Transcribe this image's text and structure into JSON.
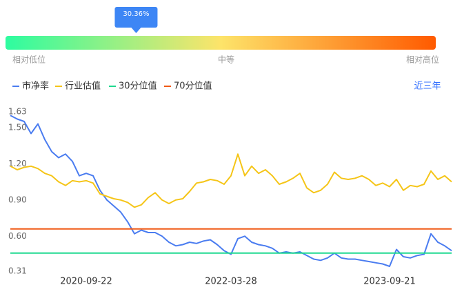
{
  "gauge": {
    "value": 30.36,
    "label": "30.36%",
    "low": "相对低位",
    "mid": "中等",
    "high": "相对高位"
  },
  "range_button": "近三年",
  "chart_data": {
    "type": "line",
    "categories": [
      null,
      null,
      null,
      null,
      null,
      null,
      null,
      null,
      null,
      null,
      null,
      "2020-09-22",
      null,
      null,
      null,
      null,
      null,
      null,
      null,
      null,
      null,
      null,
      null,
      null,
      null,
      null,
      null,
      null,
      null,
      null,
      null,
      null,
      "2022-03-28",
      null,
      null,
      null,
      null,
      null,
      null,
      null,
      null,
      null,
      null,
      null,
      null,
      null,
      null,
      null,
      null,
      null,
      null,
      null,
      null,
      null,
      null,
      "2023-09-21",
      null,
      null,
      null,
      null,
      null,
      null,
      null,
      null,
      null
    ],
    "series": [
      {
        "name": "市净率",
        "color": "#4a7cf0",
        "values": [
          1.6,
          1.57,
          1.55,
          1.45,
          1.53,
          1.4,
          1.3,
          1.25,
          1.28,
          1.22,
          1.1,
          1.12,
          1.1,
          0.98,
          0.9,
          0.85,
          0.8,
          0.72,
          0.62,
          0.65,
          0.63,
          0.63,
          0.6,
          0.55,
          0.52,
          0.53,
          0.55,
          0.54,
          0.56,
          0.57,
          0.53,
          0.48,
          0.45,
          0.58,
          0.6,
          0.55,
          0.53,
          0.52,
          0.5,
          0.46,
          0.47,
          0.46,
          0.47,
          0.44,
          0.41,
          0.4,
          0.42,
          0.46,
          0.42,
          0.41,
          0.41,
          0.4,
          0.39,
          0.38,
          0.37,
          0.35,
          0.49,
          0.43,
          0.42,
          0.44,
          0.45,
          0.62,
          0.55,
          0.52,
          0.48
        ]
      },
      {
        "name": "行业估值",
        "color": "#f5c518",
        "values": [
          1.18,
          1.15,
          1.17,
          1.18,
          1.16,
          1.12,
          1.1,
          1.05,
          1.02,
          1.06,
          1.05,
          1.06,
          1.04,
          0.95,
          0.93,
          0.91,
          0.9,
          0.88,
          0.84,
          0.86,
          0.92,
          0.96,
          0.9,
          0.87,
          0.9,
          0.91,
          0.97,
          1.04,
          1.05,
          1.07,
          1.06,
          1.03,
          1.1,
          1.28,
          1.1,
          1.18,
          1.12,
          1.15,
          1.1,
          1.03,
          1.05,
          1.08,
          1.12,
          1.0,
          0.96,
          0.98,
          1.03,
          1.13,
          1.08,
          1.07,
          1.08,
          1.1,
          1.07,
          1.02,
          1.04,
          1.01,
          1.07,
          0.98,
          1.02,
          1.01,
          1.03,
          1.14,
          1.07,
          1.1,
          1.05
        ]
      },
      {
        "name": "30分位值",
        "color": "#1ed98f",
        "values": [
          0.46,
          0.46,
          0.46,
          0.46,
          0.46,
          0.46,
          0.46,
          0.46,
          0.46,
          0.46,
          0.46,
          0.46,
          0.46,
          0.46,
          0.46,
          0.46,
          0.46,
          0.46,
          0.46,
          0.46,
          0.46,
          0.46,
          0.46,
          0.46,
          0.46,
          0.46,
          0.46,
          0.46,
          0.46,
          0.46,
          0.46,
          0.46,
          0.46,
          0.46,
          0.46,
          0.46,
          0.46,
          0.46,
          0.46,
          0.46,
          0.46,
          0.46,
          0.46,
          0.46,
          0.46,
          0.46,
          0.46,
          0.46,
          0.46,
          0.46,
          0.46,
          0.46,
          0.46,
          0.46,
          0.46,
          0.46,
          0.46,
          0.46,
          0.46,
          0.46,
          0.46,
          0.46,
          0.46,
          0.46,
          0.46
        ]
      },
      {
        "name": "70分位值",
        "color": "#f05a16",
        "values": [
          0.66,
          0.66,
          0.66,
          0.66,
          0.66,
          0.66,
          0.66,
          0.66,
          0.66,
          0.66,
          0.66,
          0.66,
          0.66,
          0.66,
          0.66,
          0.66,
          0.66,
          0.66,
          0.66,
          0.66,
          0.66,
          0.66,
          0.66,
          0.66,
          0.66,
          0.66,
          0.66,
          0.66,
          0.66,
          0.66,
          0.66,
          0.66,
          0.66,
          0.66,
          0.66,
          0.66,
          0.66,
          0.66,
          0.66,
          0.66,
          0.66,
          0.66,
          0.66,
          0.66,
          0.66,
          0.66,
          0.66,
          0.66,
          0.66,
          0.66,
          0.66,
          0.66,
          0.66,
          0.66,
          0.66,
          0.66,
          0.66,
          0.66,
          0.66,
          0.66,
          0.66,
          0.66,
          0.66,
          0.66,
          0.66
        ]
      }
    ],
    "ylim": [
      0.31,
      1.63
    ],
    "yticks": [
      0.31,
      {
        "value": 0.6,
        "label": "0.60"
      },
      {
        "value": 0.9,
        "label": "0.90"
      },
      {
        "value": 1.2,
        "label": "1.20"
      },
      {
        "value": 1.5,
        "label": "1.50"
      },
      1.63
    ],
    "grid": false
  }
}
